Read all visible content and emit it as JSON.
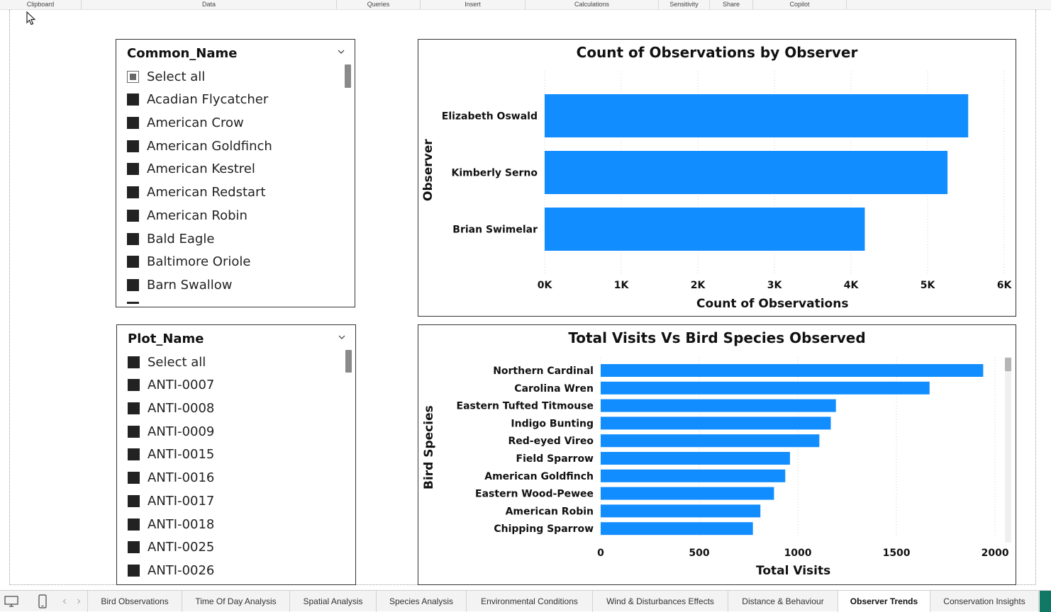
{
  "ribbon": {
    "groups": [
      "Clipboard",
      "Data",
      "Queries",
      "Insert",
      "Calculations",
      "Sensitivity",
      "Share",
      "Copilot"
    ]
  },
  "slicer_common": {
    "title": "Common_Name",
    "select_all": "Select all",
    "items": [
      "Acadian Flycatcher",
      "American Crow",
      "American Goldfinch",
      "American Kestrel",
      "American Redstart",
      "American Robin",
      "Bald Eagle",
      "Baltimore Oriole",
      "Barn Swallow"
    ]
  },
  "slicer_plot": {
    "title": "Plot_Name",
    "select_all": "Select all",
    "items": [
      "ANTI-0007",
      "ANTI-0008",
      "ANTI-0009",
      "ANTI-0015",
      "ANTI-0016",
      "ANTI-0017",
      "ANTI-0018",
      "ANTI-0025",
      "ANTI-0026"
    ]
  },
  "chart_data": [
    {
      "type": "bar",
      "orientation": "horizontal",
      "title": "Count of Observations by Observer",
      "xlabel": "Count of Observations",
      "ylabel": "Observer",
      "categories": [
        "Elizabeth Oswald",
        "Kimberly Serno",
        "Brian Swimelar"
      ],
      "values": [
        5530,
        5260,
        4180
      ],
      "xlim": [
        0,
        6000
      ],
      "ticks": [
        0,
        1000,
        2000,
        3000,
        4000,
        5000,
        6000
      ],
      "tick_labels": [
        "0K",
        "1K",
        "2K",
        "3K",
        "4K",
        "5K",
        "6K"
      ],
      "grid": "vertical dotted",
      "color": "#118DFF"
    },
    {
      "type": "bar",
      "orientation": "horizontal",
      "title": "Total Visits Vs Bird Species Observed",
      "xlabel": "Total Visits",
      "ylabel": "Bird Species",
      "categories": [
        "Northern Cardinal",
        "Carolina Wren",
        "Eastern Tufted Titmouse",
        "Indigo Bunting",
        "Red-eyed Vireo",
        "Field Sparrow",
        "American Goldfinch",
        "Eastern Wood-Pewee",
        "American Robin",
        "Chipping Sparrow"
      ],
      "values": [
        1940,
        1668,
        1193,
        1167,
        1109,
        960,
        936,
        879,
        810,
        772
      ],
      "xlim": [
        0,
        2050
      ],
      "ticks": [
        0,
        500,
        1000,
        1500,
        2000
      ],
      "tick_labels": [
        "0",
        "500",
        "1000",
        "1500",
        "2000"
      ],
      "grid": "vertical dotted",
      "color": "#118DFF"
    }
  ],
  "tabs": {
    "items": [
      "Bird Observations",
      "Time Of Day Analysis",
      "Spatial Analysis",
      "Species Analysis",
      "Environmental Conditions",
      "Wind & Disturbances Effects",
      "Distance & Behaviour",
      "Observer Trends",
      "Conservation Insights"
    ],
    "active": "Observer Trends"
  },
  "colors": {
    "bar": "#118DFF",
    "accent": "#117865"
  },
  "icons": [
    "cursor-arrow-icon",
    "chevron-down-icon",
    "desktop-view-icon",
    "mobile-view-icon",
    "prev-page-icon",
    "next-page-icon"
  ]
}
